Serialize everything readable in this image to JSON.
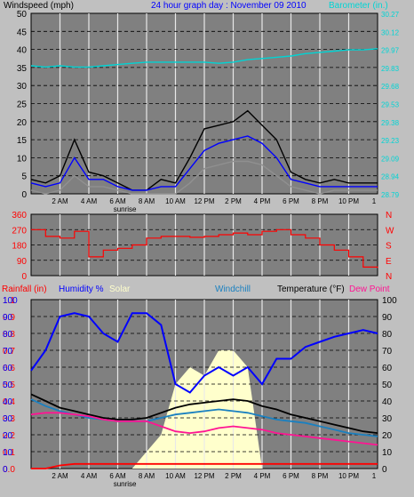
{
  "colors": {
    "bg": "#c0c0c0",
    "plot": "#808080",
    "grid": "#e8e8e8",
    "wind_label": "#000000",
    "title": "#0000ff",
    "barometer": "#00d4d4",
    "direction": "#ff0000",
    "rain": "#ff0000",
    "humidity": "#0000ff",
    "solar": "#ffffcc",
    "windchill": "#1a80c0",
    "temperature": "#000000",
    "dewpoint": "#ff1493",
    "hi_line": "#000000",
    "avg_line": "#0000ff",
    "low_line": "#909090"
  },
  "header": {
    "wind_label": "Windspeed (mph)",
    "title": "24 hour graph day : November 09 2010",
    "baro_label": "Barometer (in.)"
  },
  "panel3_header": {
    "rain": "Rainfall (in)",
    "humidity": "Humidity %",
    "solar": "Solar",
    "windchill": "Windchill",
    "temperature": "Temperature (°F)",
    "dewpoint": "Dew Point"
  },
  "time_labels": [
    "2 AM",
    "4 AM",
    "6 AM",
    "8 AM",
    "10 AM",
    "12 PM",
    "2 PM",
    "4 PM",
    "6 PM",
    "8 PM",
    "10 PM",
    "1"
  ],
  "sunrise_label": "sunrise",
  "wind_axis": [
    "50",
    "45",
    "40",
    "35",
    "30",
    "25",
    "20",
    "15",
    "10",
    "5",
    "0"
  ],
  "baro_axis": [
    "30.27",
    "30.12",
    "29.97",
    "29.83",
    "29.68",
    "29.53",
    "29.38",
    "29.23",
    "29.09",
    "28.94",
    "28.79"
  ],
  "dir_axis": [
    "360",
    "270",
    "180",
    "90",
    "0"
  ],
  "dir_letters": [
    "N",
    "W",
    "S",
    "E",
    "N"
  ],
  "rain_axis": [
    "1.0",
    "1.1",
    "0.9",
    "0.8",
    "0.7",
    "0.6",
    "0.5",
    "0.4",
    "0.3",
    "0.2",
    "0.1",
    "0.0"
  ],
  "hum_axis": [
    "100",
    "90",
    "80",
    "70",
    "60",
    "50",
    "40",
    "30",
    "20",
    "10",
    "0"
  ],
  "temp_axis": [
    "100",
    "90",
    "80",
    "70",
    "60",
    "50",
    "40",
    "30",
    "20",
    "10",
    "0"
  ],
  "chart_data": [
    {
      "type": "line",
      "title": "24 hour graph day : November 09 2010",
      "ylabel": "Windspeed (mph)",
      "y2label": "Barometer (in.)",
      "x": [
        0,
        1,
        2,
        3,
        4,
        5,
        6,
        7,
        8,
        9,
        10,
        11,
        12,
        13,
        14,
        15,
        16,
        17,
        18,
        19,
        20,
        21,
        22,
        23,
        24
      ],
      "ylim": [
        0,
        50
      ],
      "y2lim": [
        28.79,
        30.27
      ],
      "series": [
        {
          "name": "hi",
          "values": [
            4,
            3,
            5,
            15,
            6,
            5,
            3,
            1,
            1,
            4,
            3,
            10,
            18,
            19,
            20,
            23,
            19,
            15,
            6,
            4,
            3,
            4,
            3,
            3,
            3
          ]
        },
        {
          "name": "avg",
          "values": [
            3,
            2,
            3,
            10,
            4,
            4,
            2,
            1,
            1,
            2,
            2,
            7,
            12,
            14,
            15,
            16,
            14,
            10,
            4,
            3,
            2,
            2,
            2,
            2,
            2
          ]
        },
        {
          "name": "low",
          "values": [
            1,
            0,
            1,
            5,
            2,
            2,
            1,
            0,
            0,
            0,
            0,
            3,
            7,
            8,
            9,
            9,
            8,
            5,
            2,
            1,
            0,
            1,
            1,
            1,
            1
          ]
        },
        {
          "name": "Barometer",
          "values": [
            29.84,
            29.83,
            29.84,
            29.83,
            29.83,
            29.84,
            29.85,
            29.86,
            29.87,
            29.87,
            29.87,
            29.87,
            29.87,
            29.86,
            29.87,
            29.89,
            29.9,
            29.91,
            29.92,
            29.94,
            29.95,
            29.96,
            29.97,
            29.97,
            29.98
          ]
        }
      ]
    },
    {
      "type": "line",
      "ylabel": "Wind direction",
      "x": [
        0,
        1,
        2,
        3,
        4,
        5,
        6,
        7,
        8,
        9,
        10,
        11,
        12,
        13,
        14,
        15,
        16,
        17,
        18,
        19,
        20,
        21,
        22,
        23,
        24
      ],
      "ylim": [
        0,
        360
      ],
      "series": [
        {
          "name": "direction",
          "values": [
            270,
            230,
            220,
            260,
            110,
            150,
            160,
            180,
            220,
            230,
            230,
            225,
            230,
            240,
            250,
            240,
            260,
            270,
            240,
            220,
            180,
            150,
            110,
            50,
            45
          ]
        }
      ]
    },
    {
      "type": "line",
      "x": [
        0,
        1,
        2,
        3,
        4,
        5,
        6,
        7,
        8,
        9,
        10,
        11,
        12,
        13,
        14,
        15,
        16,
        17,
        18,
        19,
        20,
        21,
        22,
        23,
        24
      ],
      "ylim": [
        0,
        100
      ],
      "series": [
        {
          "name": "Humidity %",
          "values": [
            58,
            70,
            90,
            92,
            90,
            80,
            75,
            92,
            92,
            85,
            50,
            45,
            55,
            60,
            55,
            60,
            50,
            65,
            65,
            72,
            75,
            78,
            80,
            82,
            80
          ]
        },
        {
          "name": "Temperature (°F)",
          "values": [
            44,
            40,
            36,
            34,
            32,
            30,
            29,
            29,
            30,
            33,
            36,
            38,
            39,
            40,
            41,
            40,
            37,
            35,
            32,
            30,
            28,
            26,
            24,
            22,
            21
          ]
        },
        {
          "name": "Windchill",
          "values": [
            41,
            37,
            34,
            32,
            30,
            29,
            28,
            28,
            28,
            30,
            32,
            33,
            34,
            35,
            34,
            33,
            31,
            29,
            28,
            27,
            25,
            23,
            21,
            20,
            19
          ]
        },
        {
          "name": "Dew Point",
          "values": [
            32,
            33,
            33,
            32,
            31,
            29,
            28,
            28,
            28,
            25,
            22,
            21,
            22,
            24,
            25,
            24,
            23,
            21,
            20,
            19,
            18,
            17,
            16,
            15,
            14
          ]
        },
        {
          "name": "Rainfall (in)",
          "values": [
            0,
            0,
            0.02,
            0.03,
            0.03,
            0.03,
            0.03,
            0.03,
            0.03,
            0.03,
            0.03,
            0.03,
            0.03,
            0.03,
            0.03,
            0.03,
            0.03,
            0.03,
            0.03,
            0.03,
            0.03,
            0.03,
            0.03,
            0.03,
            0.03
          ]
        },
        {
          "name": "Solar",
          "values": [
            0,
            0,
            0,
            0,
            0,
            0,
            0,
            0,
            10,
            20,
            50,
            60,
            55,
            70,
            70,
            60,
            0,
            0,
            0,
            0,
            0,
            0,
            0,
            0,
            0
          ]
        }
      ]
    }
  ]
}
